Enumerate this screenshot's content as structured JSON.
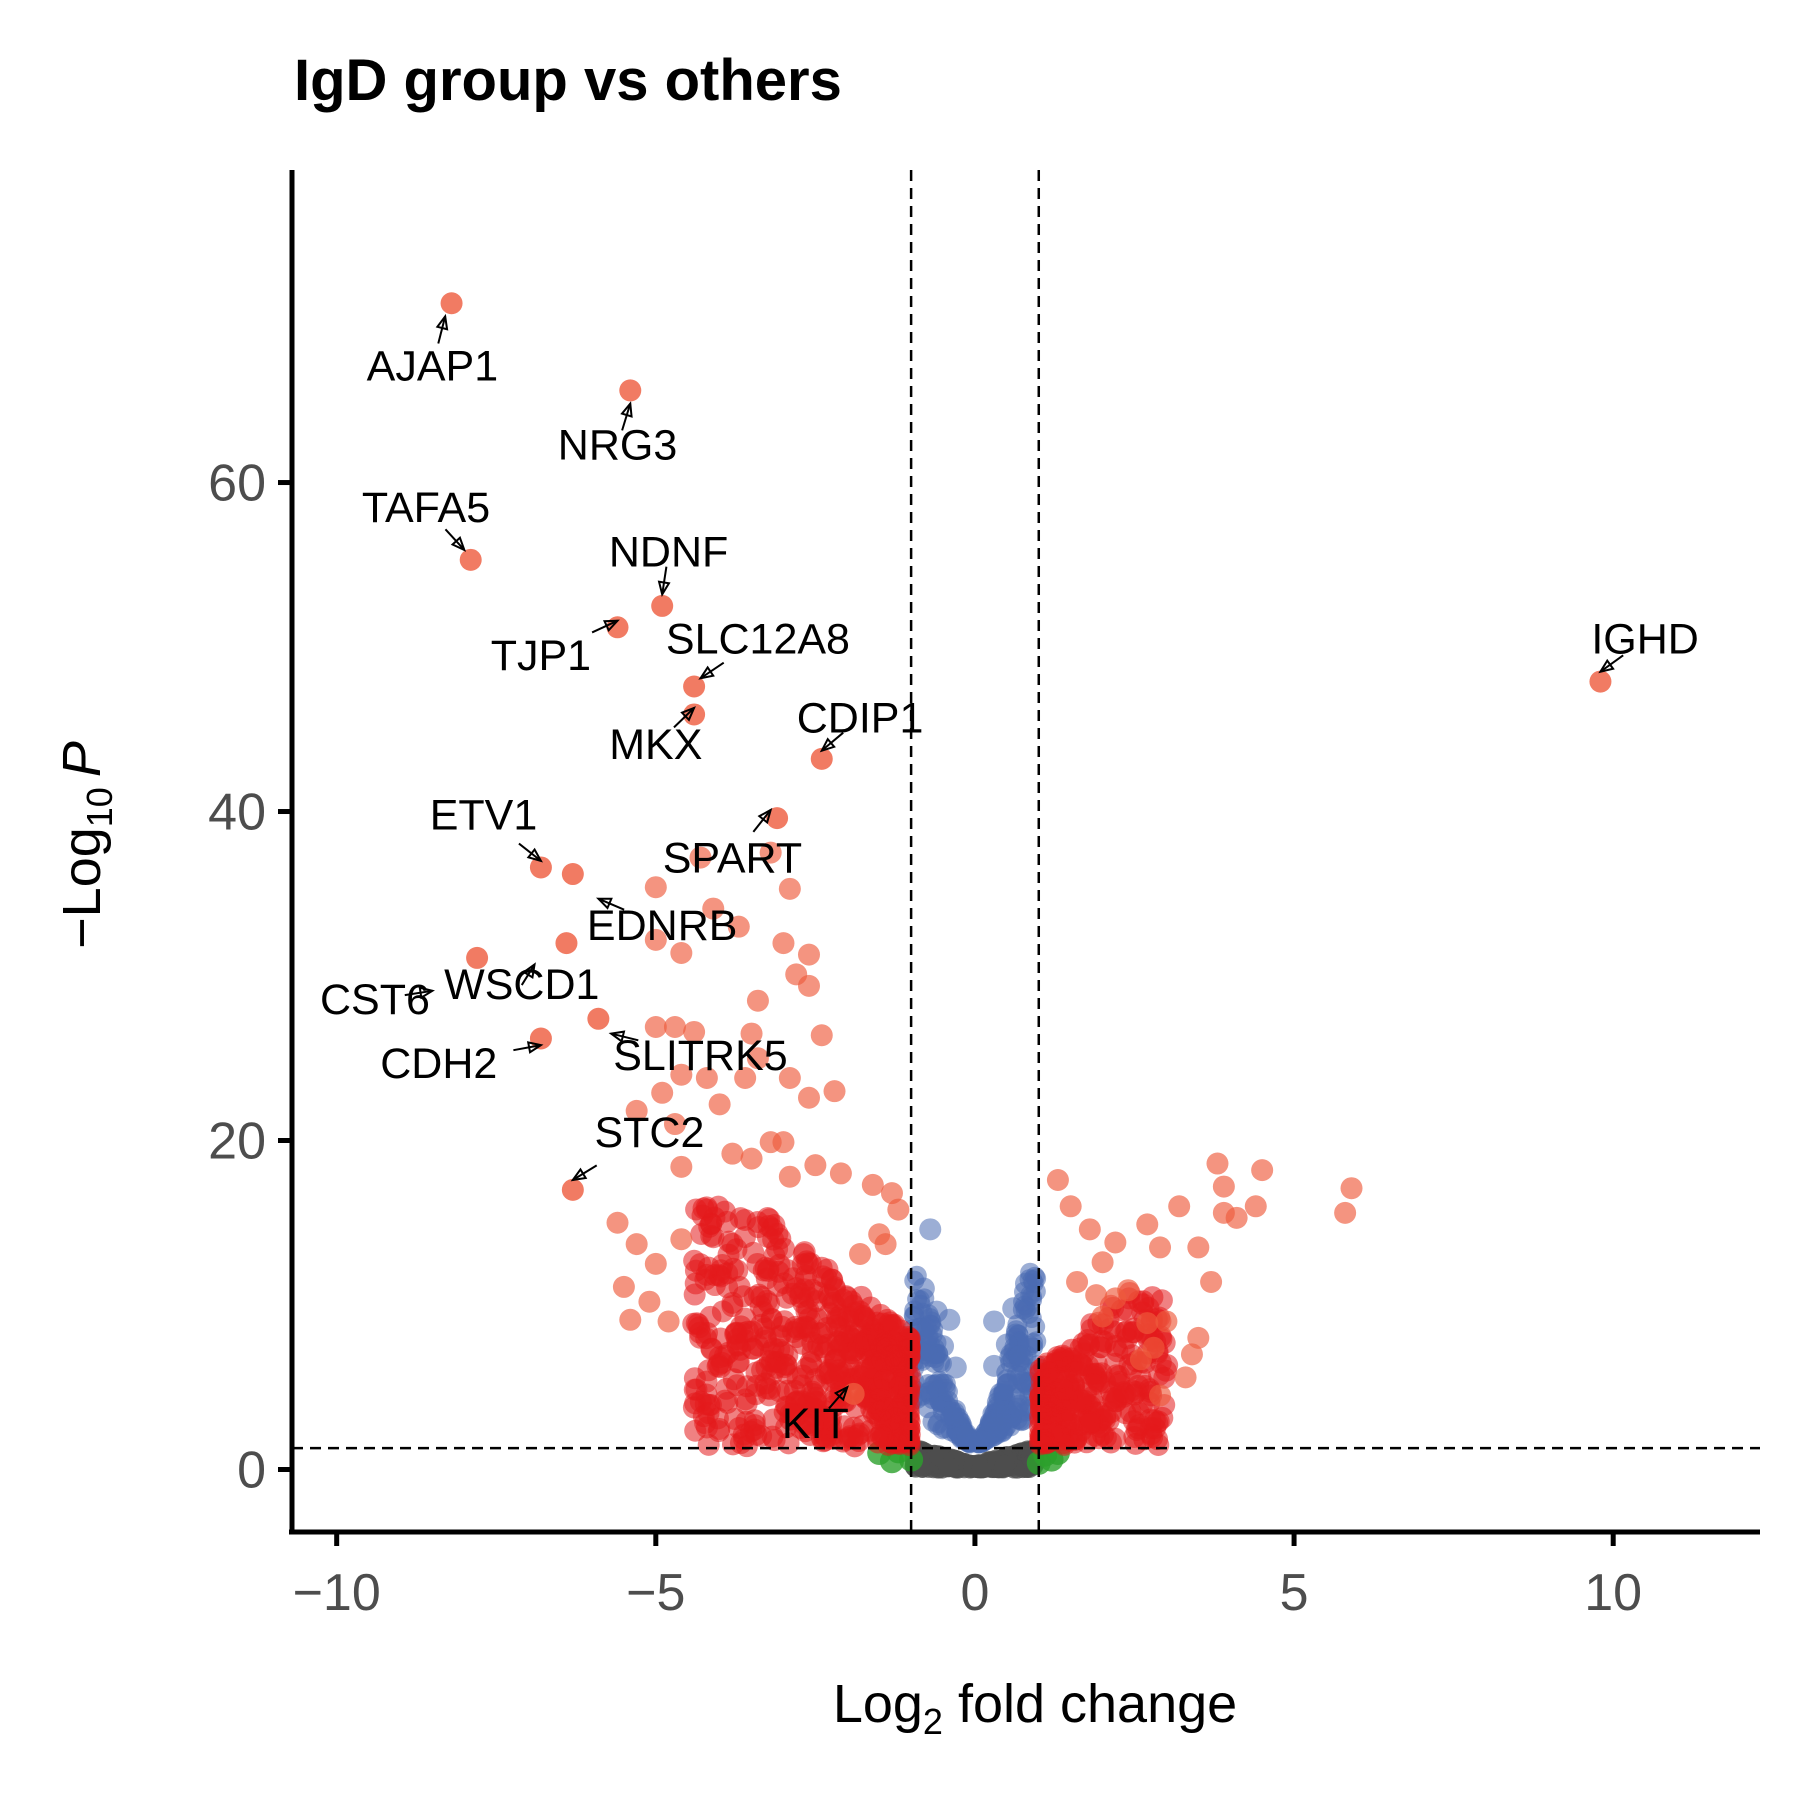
{
  "colors": {
    "both": "#e41a1c",
    "both_large": "#ee5a3c",
    "pvalue_only": "#4a6cb3",
    "fc_only": "#2ca02c",
    "ns": "#4d4d4d",
    "threshold_line": "#000000",
    "axis": "#000000"
  },
  "chart_data": {
    "type": "scatter",
    "title": "IgD group vs others",
    "xlabel": {
      "base": "Log",
      "sub": "2",
      "rest": " fold change"
    },
    "ylabel": {
      "prefix": "−Log",
      "sub": "10",
      "italic": "P"
    },
    "xlim": [
      -10.7,
      12.3
    ],
    "ylim": [
      -3.8,
      79
    ],
    "xticks": [
      -10,
      -5,
      0,
      5,
      10
    ],
    "xtick_labels": [
      "−10",
      "−5",
      "0",
      "5",
      "10"
    ],
    "yticks": [
      0,
      20,
      40,
      60
    ],
    "ytick_labels": [
      "0",
      "20",
      "40",
      "60"
    ],
    "grid": false,
    "legend": "none",
    "thresholds": {
      "fc": [
        -1,
        1
      ],
      "p_neglog10": 1.3
    },
    "labeled_points": [
      {
        "gene": "AJAP1",
        "x": -8.2,
        "y": 70.9
      },
      {
        "gene": "NRG3",
        "x": -5.4,
        "y": 65.6
      },
      {
        "gene": "TAFA5",
        "x": -7.9,
        "y": 55.3
      },
      {
        "gene": "NDNF",
        "x": -4.9,
        "y": 52.5
      },
      {
        "gene": "TJP1",
        "x": -5.6,
        "y": 51.2
      },
      {
        "gene": "SLC12A8",
        "x": -4.4,
        "y": 47.6
      },
      {
        "gene": "MKX",
        "x": -4.4,
        "y": 45.9
      },
      {
        "gene": "CDIP1",
        "x": -2.4,
        "y": 43.2
      },
      {
        "gene": "IGHD",
        "x": 9.8,
        "y": 47.9
      },
      {
        "gene": "ETV1",
        "x": -6.8,
        "y": 36.6
      },
      {
        "gene": "SPART",
        "x": -3.1,
        "y": 39.6
      },
      {
        "gene": "EDNRB",
        "x": -6.3,
        "y": 36.2
      },
      {
        "gene": "WSCD1",
        "x": -6.4,
        "y": 32.0
      },
      {
        "gene": "CST6",
        "x": -7.8,
        "y": 31.1
      },
      {
        "gene": "CDH2",
        "x": -6.8,
        "y": 26.2
      },
      {
        "gene": "SLITRK5",
        "x": -5.9,
        "y": 27.4
      },
      {
        "gene": "STC2",
        "x": -6.3,
        "y": 17.0
      },
      {
        "gene": "KIT",
        "x": -1.9,
        "y": 4.6
      }
    ],
    "points_both": [
      [
        -5.0,
        35.4
      ],
      [
        -4.3,
        37.2
      ],
      [
        -3.2,
        37.5
      ],
      [
        -2.9,
        35.3
      ],
      [
        -5.0,
        32.2
      ],
      [
        -4.6,
        31.4
      ],
      [
        -4.1,
        34.1
      ],
      [
        -3.7,
        33.0
      ],
      [
        -3.0,
        32.0
      ],
      [
        -2.6,
        31.3
      ],
      [
        -2.8,
        30.1
      ],
      [
        -2.6,
        29.4
      ],
      [
        -3.4,
        28.5
      ],
      [
        -5.0,
        26.9
      ],
      [
        -4.7,
        26.9
      ],
      [
        -4.4,
        26.6
      ],
      [
        -3.5,
        26.5
      ],
      [
        -3.4,
        25.0
      ],
      [
        -2.4,
        26.4
      ],
      [
        -4.6,
        24.0
      ],
      [
        -4.2,
        23.8
      ],
      [
        -3.6,
        23.8
      ],
      [
        -2.9,
        23.8
      ],
      [
        -2.2,
        23.0
      ],
      [
        -2.6,
        22.6
      ],
      [
        -4.0,
        22.2
      ],
      [
        -4.9,
        22.9
      ],
      [
        -5.3,
        21.8
      ],
      [
        -4.7,
        21.0
      ],
      [
        -3.2,
        19.9
      ],
      [
        -3.0,
        19.9
      ],
      [
        -3.8,
        19.2
      ],
      [
        -4.6,
        18.4
      ],
      [
        -3.5,
        18.9
      ],
      [
        -2.9,
        17.8
      ],
      [
        -2.5,
        18.5
      ],
      [
        -2.1,
        18.0
      ],
      [
        -1.6,
        17.3
      ],
      [
        -5.6,
        15.0
      ],
      [
        -5.3,
        13.7
      ],
      [
        -4.6,
        14.0
      ],
      [
        -5.0,
        12.5
      ],
      [
        -5.5,
        11.1
      ],
      [
        -5.1,
        10.2
      ],
      [
        -5.4,
        9.1
      ],
      [
        -4.8,
        9.0
      ],
      [
        -1.3,
        16.8
      ],
      [
        -1.2,
        15.8
      ],
      [
        -1.5,
        14.3
      ],
      [
        -1.4,
        13.7
      ],
      [
        -1.8,
        13.1
      ],
      [
        3.9,
        17.2
      ],
      [
        4.5,
        18.2
      ],
      [
        3.8,
        18.6
      ],
      [
        5.8,
        15.6
      ],
      [
        5.9,
        17.1
      ],
      [
        4.4,
        16.0
      ],
      [
        4.1,
        15.3
      ],
      [
        3.9,
        15.6
      ],
      [
        3.2,
        16.0
      ],
      [
        2.7,
        14.9
      ],
      [
        2.2,
        13.8
      ],
      [
        3.5,
        13.5
      ],
      [
        3.7,
        11.4
      ],
      [
        2.9,
        13.5
      ],
      [
        2.0,
        12.6
      ],
      [
        1.8,
        14.6
      ],
      [
        1.5,
        16.0
      ],
      [
        1.3,
        17.6
      ],
      [
        1.6,
        11.4
      ],
      [
        2.2,
        10.4
      ],
      [
        2.4,
        10.9
      ],
      [
        3.0,
        9.0
      ],
      [
        3.5,
        8.0
      ],
      [
        3.4,
        7.0
      ],
      [
        3.3,
        5.6
      ],
      [
        2.8,
        7.4
      ],
      [
        2.9,
        4.5
      ],
      [
        2.6,
        6.7
      ],
      [
        1.9,
        10.6
      ],
      [
        2.0,
        9.3
      ],
      [
        2.7,
        8.9
      ]
    ],
    "points_pvalue_only": [
      [
        -0.7,
        14.6
      ],
      [
        0.8,
        11.3
      ],
      [
        -0.6,
        9.6
      ],
      [
        -0.4,
        9.1
      ],
      [
        0.3,
        9.0
      ],
      [
        0.6,
        9.8
      ],
      [
        -0.8,
        11.0
      ],
      [
        -0.5,
        7.5
      ],
      [
        0.5,
        7.6
      ],
      [
        -0.3,
        6.2
      ],
      [
        0.3,
        6.3
      ],
      [
        -0.7,
        6.9
      ],
      [
        0.7,
        6.9
      ]
    ],
    "points_fc_only": [
      [
        -1.5,
        1.0
      ],
      [
        -1.2,
        1.1
      ],
      [
        -1.0,
        0.6
      ],
      [
        -1.3,
        0.5
      ],
      [
        1.1,
        0.9
      ],
      [
        1.3,
        1.0
      ],
      [
        1.2,
        0.6
      ],
      [
        1.0,
        0.4
      ]
    ]
  }
}
